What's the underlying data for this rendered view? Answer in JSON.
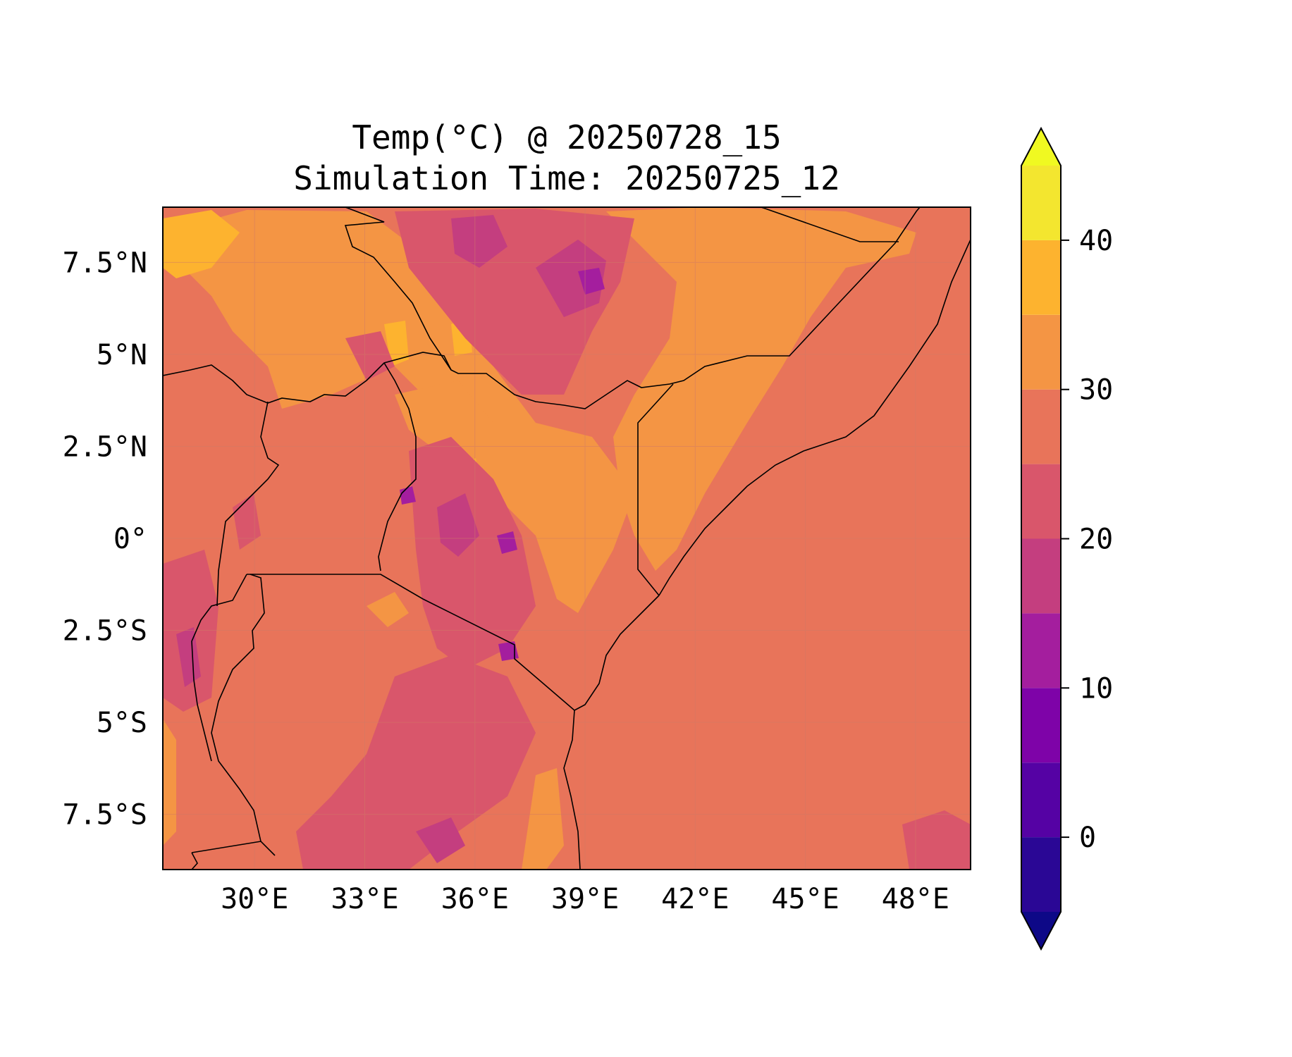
{
  "figure": {
    "title_line1": "Temp(°C) @ 20250728_15",
    "title_line2": "Simulation Time: 20250725_12"
  },
  "map": {
    "lon_range": [
      27.5,
      49.5
    ],
    "lat_range": [
      -9,
      9
    ],
    "lon_ticks": [
      {
        "value": 30,
        "label": "30°E"
      },
      {
        "value": 33,
        "label": "33°E"
      },
      {
        "value": 36,
        "label": "36°E"
      },
      {
        "value": 39,
        "label": "39°E"
      },
      {
        "value": 42,
        "label": "42°E"
      },
      {
        "value": 45,
        "label": "45°E"
      },
      {
        "value": 48,
        "label": "48°E"
      }
    ],
    "lat_ticks": [
      {
        "value": 7.5,
        "label": "7.5°N"
      },
      {
        "value": 5,
        "label": "5°N"
      },
      {
        "value": 2.5,
        "label": "2.5°N"
      },
      {
        "value": 0,
        "label": "0°"
      },
      {
        "value": -2.5,
        "label": "2.5°S"
      },
      {
        "value": -5,
        "label": "5°S"
      },
      {
        "value": -7.5,
        "label": "7.5°S"
      }
    ],
    "background_color": "#e8745a"
  },
  "colorbar": {
    "levels": [
      -5,
      0,
      5,
      10,
      15,
      20,
      25,
      30,
      35,
      40,
      45
    ],
    "colors": [
      "#2a0795",
      "#5502a4",
      "#7e03a8",
      "#a41e9e",
      "#c43e7f",
      "#d9566b",
      "#e8745a",
      "#f49544",
      "#fdb32f",
      "#f3e62f"
    ],
    "under_color": "#0d0887",
    "over_color": "#f0f921",
    "ticks": [
      {
        "value": 0,
        "label": "0"
      },
      {
        "value": 10,
        "label": "10"
      },
      {
        "value": 20,
        "label": "20"
      },
      {
        "value": 30,
        "label": "30"
      },
      {
        "value": 40,
        "label": "40"
      }
    ]
  }
}
